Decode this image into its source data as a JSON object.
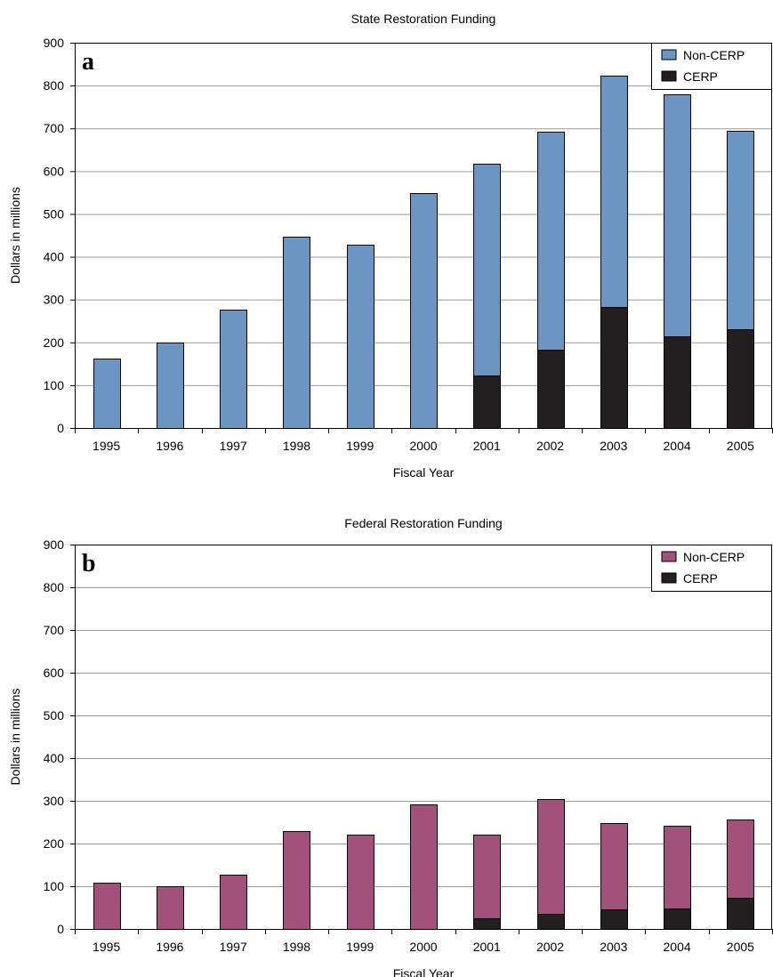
{
  "chart_data": [
    {
      "type": "bar",
      "stacked": true,
      "panel_letter": "a",
      "title": "State Restoration Funding",
      "xlabel": "Fiscal Year",
      "ylabel": "Dollars in millions",
      "ylim": [
        0,
        900
      ],
      "yticks": [
        0,
        100,
        200,
        300,
        400,
        500,
        600,
        700,
        800,
        900
      ],
      "grid": true,
      "legend_position": "top-right",
      "categories": [
        "1995",
        "1996",
        "1997",
        "1998",
        "1999",
        "2000",
        "2001",
        "2002",
        "2003",
        "2004",
        "2005"
      ],
      "series": [
        {
          "name": "CERP",
          "color": "#231f20",
          "values": [
            0,
            0,
            0,
            0,
            0,
            0,
            123,
            183,
            283,
            215,
            230
          ]
        },
        {
          "name": "Non-CERP",
          "color": "#6b96c4",
          "values": [
            162,
            200,
            277,
            447,
            428,
            548,
            495,
            509,
            540,
            564,
            465
          ]
        }
      ],
      "legend_order": [
        "Non-CERP",
        "CERP"
      ]
    },
    {
      "type": "bar",
      "stacked": true,
      "panel_letter": "b",
      "title": "Federal Restoration Funding",
      "xlabel": "Fiscal Year",
      "ylabel": "Dollars in millions",
      "ylim": [
        0,
        900
      ],
      "yticks": [
        0,
        100,
        200,
        300,
        400,
        500,
        600,
        700,
        800,
        900
      ],
      "grid": true,
      "legend_position": "top-right",
      "categories": [
        "1995",
        "1996",
        "1997",
        "1998",
        "1999",
        "2000",
        "2001",
        "2002",
        "2003",
        "2004",
        "2005"
      ],
      "series": [
        {
          "name": "CERP",
          "color": "#231f20",
          "values": [
            0,
            0,
            0,
            0,
            0,
            0,
            24,
            36,
            46,
            48,
            72
          ]
        },
        {
          "name": "Non-CERP",
          "color": "#a1517a",
          "values": [
            108,
            100,
            127,
            230,
            220,
            292,
            196,
            268,
            202,
            193,
            185
          ]
        }
      ],
      "legend_order": [
        "Non-CERP",
        "CERP"
      ]
    }
  ]
}
